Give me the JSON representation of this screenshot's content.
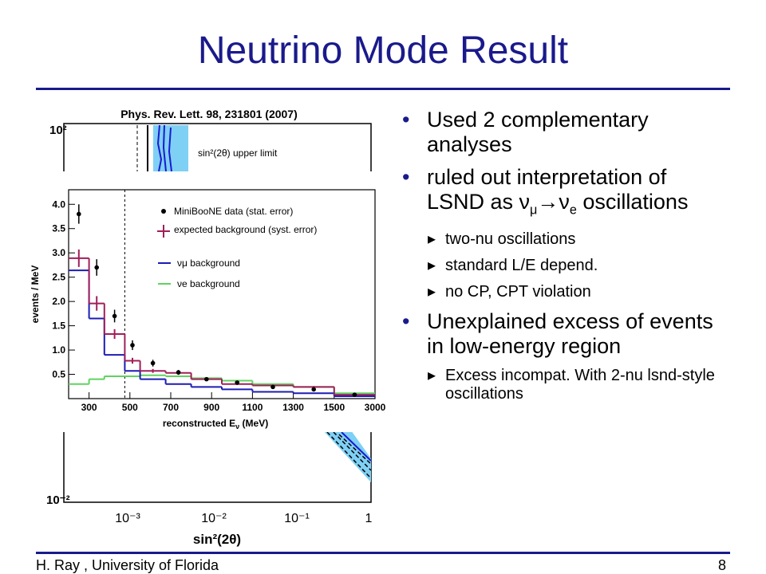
{
  "slide": {
    "title": "Neutrino Mode Result",
    "footer_left": "H. Ray , University of Florida",
    "footer_right": "8"
  },
  "citation": "Phys. Rev. Lett. 98, 231801 (2007)",
  "bullets": [
    {
      "parts": [
        {
          "text": "Used 2 complementary analyses"
        }
      ]
    },
    {
      "parts": [
        {
          "text": "ruled out interpretation of LSND as ν"
        },
        {
          "text": "μ",
          "sub": true
        },
        {
          "text": "→ν"
        },
        {
          "text": "e",
          "sub": true
        },
        {
          "text": " oscillations"
        }
      ],
      "sub_bullets": [
        "two-nu oscillations",
        "standard L/E depend.",
        "no CP, CPT violation"
      ]
    },
    {
      "parts": [
        {
          "text": "Unexplained excess of events in low-energy region"
        }
      ],
      "sub_bullets": [
        "Excess incompat. With 2-nu lsnd-style oscillations"
      ]
    }
  ],
  "limit_plot": {
    "yticks": [
      "10²",
      "10⁻²"
    ],
    "xticks": [
      "10⁻³",
      "10⁻²",
      "10⁻¹",
      "1"
    ],
    "xlabel": "sin²(2θ)",
    "legend": "sin²(2θ) upper limit"
  },
  "chart_data": {
    "type": "histogram",
    "xlabel": [
      "reconstructed E",
      "ν",
      " (MeV)"
    ],
    "ylabel": "events / MeV",
    "bins": [
      200,
      300,
      375,
      475,
      550,
      675,
      800,
      950,
      1100,
      1300,
      1500,
      3000
    ],
    "xlim": [
      200,
      3000
    ],
    "xticks": [
      300,
      500,
      700,
      900,
      1100,
      1300,
      1500,
      3000
    ],
    "ylim": [
      0,
      4.3
    ],
    "yticks": [
      0.5,
      {
        "value": 1,
        "label": "1.0"
      },
      1.5,
      {
        "value": 2,
        "label": "2.0"
      },
      2.5,
      {
        "value": 3,
        "label": "3.0"
      },
      3.5,
      {
        "value": 4,
        "label": "4.0"
      }
    ],
    "cut_line": 475,
    "series": [
      {
        "name": "MiniBooNE data (stat. error)",
        "color": "#000000",
        "style": "points",
        "values": [
          3.8,
          2.7,
          1.7,
          1.1,
          0.73,
          0.54,
          0.4,
          0.33,
          0.24,
          0.19,
          0.08
        ],
        "errors": [
          0.2,
          0.17,
          0.13,
          0.1,
          0.07,
          0.05,
          0.03,
          0.03,
          0.02,
          0.02,
          0.01
        ]
      },
      {
        "name": "expected background (syst. error)",
        "color": "#a0205a",
        "style": "step",
        "values": [
          2.89,
          1.96,
          1.33,
          0.78,
          0.57,
          0.53,
          0.4,
          0.3,
          0.27,
          0.24,
          0.08
        ],
        "errors": [
          0.18,
          0.15,
          0.1,
          0.06,
          0.04,
          0.03,
          0.02,
          0.02,
          0.02,
          0.02,
          0.01
        ]
      },
      {
        "name": "νμ background",
        "color": "#1c1cb4",
        "style": "step",
        "values": [
          2.64,
          1.65,
          0.9,
          0.57,
          0.4,
          0.3,
          0.24,
          0.19,
          0.14,
          0.11,
          0.05
        ]
      },
      {
        "name": "νe background",
        "color": "#5fd35f",
        "style": "step",
        "values": [
          0.3,
          0.4,
          0.46,
          0.46,
          0.48,
          0.46,
          0.42,
          0.37,
          0.3,
          0.24,
          0.11
        ]
      }
    ]
  }
}
